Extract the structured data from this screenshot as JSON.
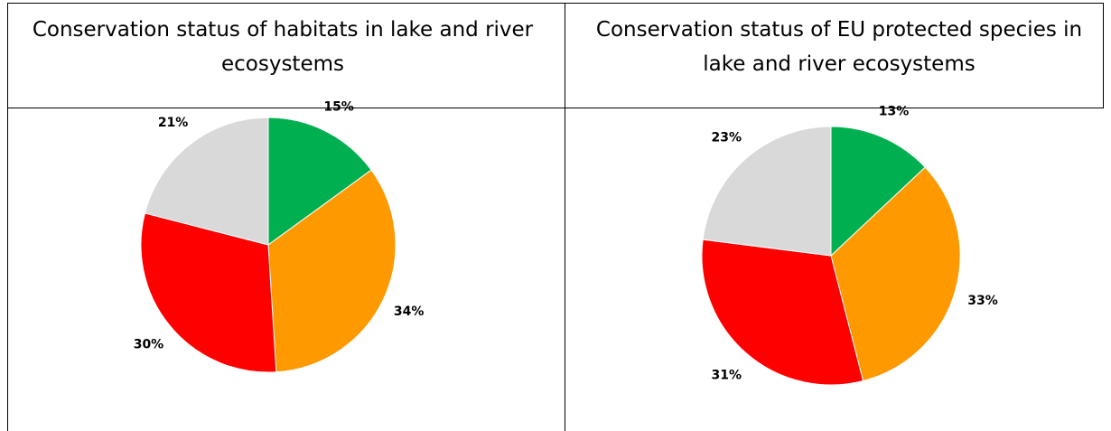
{
  "chart_data": [
    {
      "type": "pie",
      "title": "Conservation status of habitats in lake and river ecosystems",
      "slices": [
        {
          "value": 15,
          "label": "15%",
          "color": "#00b050"
        },
        {
          "value": 34,
          "label": "34%",
          "color": "#ff9900"
        },
        {
          "value": 30,
          "label": "30%",
          "color": "#ff0000"
        },
        {
          "value": 21,
          "label": "21%",
          "color": "#d9d9d9"
        }
      ]
    },
    {
      "type": "pie",
      "title": "Conservation status of EU protected species in lake and river ecosystems",
      "slices": [
        {
          "value": 13,
          "label": "13%",
          "color": "#00b050"
        },
        {
          "value": 33,
          "label": "33%",
          "color": "#ff9900"
        },
        {
          "value": 31,
          "label": "31%",
          "color": "#ff0000"
        },
        {
          "value": 23,
          "label": "23%",
          "color": "#d9d9d9"
        }
      ]
    }
  ]
}
